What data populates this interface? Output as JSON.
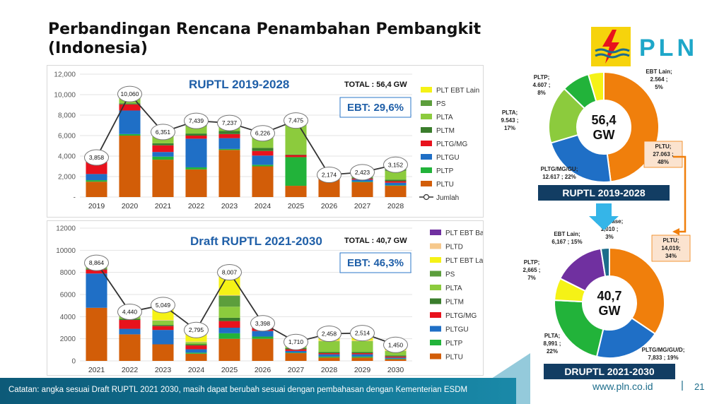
{
  "page": {
    "title": "Perbandingan Rencana Penambahan Pembangkit (Indonesia)",
    "logo_text": "PLN",
    "note": "Catatan: angka sesuai Draft RUPTL 2021 2030, masih dapat berubah sesuai dengan pembahasan dengan Kementerian ESDM",
    "url": "www.pln.co.id",
    "separator": "|",
    "page_number": "21"
  },
  "colors": {
    "PLT EBT Lain": "#f5f216",
    "PLT EBT Base": "#7030a0",
    "PLTD": "#f6c88c",
    "PS": "#5c9e3c",
    "PLTA": "#8ccb3d",
    "PLTM": "#3a7d2c",
    "PLTG/MG": "#e8121d",
    "PLTGU": "#1f6fc6",
    "PLTP": "#22b33a",
    "PLTU": "#d25d08",
    "line": "#333333",
    "brand": "#0d5a78",
    "accent": "#1f5fa8"
  },
  "chart_data": [
    {
      "type": "bar",
      "title": "RUPTL 2019-2028",
      "total_label": "TOTAL : 56,4 GW",
      "ebt_label": "EBT: 29,6%",
      "categories": [
        "2019",
        "2020",
        "2021",
        "2022",
        "2023",
        "2024",
        "2025",
        "2026",
        "2027",
        "2028"
      ],
      "ylim": [
        0,
        12000
      ],
      "yticks": [
        0,
        2000,
        4000,
        6000,
        8000,
        10000,
        12000
      ],
      "ytick_labels": [
        "-",
        "2,000",
        "4,000",
        "6,000",
        "8,000",
        "10,000",
        "12,000"
      ],
      "series": [
        {
          "name": "PLTU",
          "values": [
            1500,
            6000,
            3650,
            2700,
            4600,
            3000,
            1100,
            1800,
            1450,
            1100
          ]
        },
        {
          "name": "PLTP",
          "values": [
            150,
            150,
            300,
            200,
            100,
            150,
            2800,
            60,
            50,
            50
          ]
        },
        {
          "name": "PLTGU",
          "values": [
            600,
            2300,
            450,
            2800,
            1050,
            900,
            0,
            0,
            200,
            250
          ]
        },
        {
          "name": "PLTG/MG",
          "values": [
            1400,
            600,
            650,
            300,
            400,
            450,
            200,
            50,
            100,
            150
          ]
        },
        {
          "name": "PLTM",
          "values": [
            50,
            100,
            200,
            200,
            300,
            300,
            50,
            50,
            100,
            150
          ]
        },
        {
          "name": "PLTA",
          "values": [
            50,
            450,
            700,
            700,
            400,
            1000,
            3000,
            150,
            400,
            850
          ]
        },
        {
          "name": "PS",
          "values": [
            58,
            360,
            301,
            300,
            287,
            326,
            225,
            54,
            73,
            452
          ]
        },
        {
          "name": "PLT EBT Lain",
          "values": [
            50,
            100,
            100,
            239,
            100,
            100,
            100,
            10,
            50,
            150
          ]
        }
      ],
      "totals": [
        3858,
        10060,
        6351,
        7439,
        7237,
        6226,
        7475,
        2174,
        2423,
        3152
      ],
      "total_labels": [
        "3,858",
        "10,060",
        "6,351",
        "7,439",
        "7,237",
        "6,226",
        "7,475",
        "2,174",
        "2,423",
        "3,152"
      ],
      "legend": [
        "PLT EBT Lain",
        "PS",
        "PLTA",
        "PLTM",
        "PLTG/MG",
        "PLTGU",
        "PLTP",
        "PLTU",
        "Jumlah"
      ],
      "legend_placement": "right"
    },
    {
      "type": "bar",
      "title": "Draft RUPTL 2021-2030",
      "total_label": "TOTAL : 40,7 GW",
      "ebt_label": "EBT: 46,3%",
      "categories": [
        "2021",
        "2022",
        "2023",
        "2024",
        "2025",
        "2026",
        "2027",
        "2028",
        "2029",
        "2030"
      ],
      "ylim": [
        0,
        12000
      ],
      "yticks": [
        0,
        2000,
        4000,
        6000,
        8000,
        10000,
        12000
      ],
      "ytick_labels": [
        "0",
        "2000",
        "4000",
        "6000",
        "8000",
        "10000",
        "12000"
      ],
      "series": [
        {
          "name": "PLTU",
          "values": [
            4800,
            2400,
            1500,
            650,
            2000,
            2000,
            700,
            300,
            300,
            150
          ]
        },
        {
          "name": "PLTP",
          "values": [
            0,
            0,
            0,
            100,
            500,
            200,
            50,
            100,
            100,
            50
          ]
        },
        {
          "name": "PLTGU",
          "values": [
            3100,
            500,
            1300,
            300,
            500,
            500,
            150,
            200,
            200,
            100
          ]
        },
        {
          "name": "PLTG/MG",
          "values": [
            350,
            800,
            350,
            350,
            600,
            300,
            150,
            100,
            100,
            100
          ]
        },
        {
          "name": "PLTM",
          "values": [
            100,
            100,
            100,
            100,
            300,
            100,
            100,
            100,
            100,
            100
          ]
        },
        {
          "name": "PLTA",
          "values": [
            200,
            200,
            400,
            200,
            1000,
            200,
            200,
            1000,
            1000,
            400
          ]
        },
        {
          "name": "PS",
          "values": [
            0,
            0,
            0,
            0,
            1000,
            0,
            0,
            0,
            0,
            0
          ]
        },
        {
          "name": "PLTD",
          "values": [
            50,
            50,
            50,
            50,
            50,
            50,
            50,
            50,
            50,
            50
          ]
        },
        {
          "name": "PLT EBT Lain",
          "values": [
            164,
            290,
            1249,
            945,
            1957,
            48,
            210,
            508,
            564,
            400
          ]
        },
        {
          "name": "PLT EBT Base",
          "values": [
            100,
            100,
            100,
            100,
            100,
            0,
            100,
            100,
            100,
            100
          ]
        }
      ],
      "totals": [
        8864,
        4440,
        5049,
        2795,
        8007,
        3398,
        1710,
        2458,
        2514,
        1450
      ],
      "total_labels": [
        "8,864",
        "4,440",
        "5,049",
        "2,795",
        "8,007",
        "3,398",
        "1,710",
        "2,458",
        "2,514",
        "1,450"
      ],
      "legend": [
        "PLT EBT Base",
        "PLTD",
        "PLT EBT Lain",
        "PS",
        "PLTA",
        "PLTM",
        "PLTG/MG",
        "PLTGU",
        "PLTP",
        "PLTU"
      ],
      "legend_placement": "right"
    },
    {
      "type": "pie",
      "title": "RUPTL 2019-2028",
      "center_top": "56,4",
      "center_bottom": "GW",
      "slices": [
        {
          "name": "PLTU",
          "value": 27.063,
          "label_lines": [
            "PLTU;",
            "27.063 ;",
            "48%"
          ],
          "color": "#f07f0c"
        },
        {
          "name": "PLTG/MG/GU",
          "value": 12.617,
          "label_lines": [
            "PLTG/MG/GU;",
            "12.617 ; 22%"
          ],
          "color": "#1f6fc6"
        },
        {
          "name": "PLTA",
          "value": 9.543,
          "label_lines": [
            "PLTA;",
            "9.543 ;",
            "17%"
          ],
          "color": "#8ccb3d"
        },
        {
          "name": "PLTP",
          "value": 4.607,
          "label_lines": [
            "PLTP;",
            "4.607 ;",
            "8%"
          ],
          "color": "#22b33a"
        },
        {
          "name": "EBT Lain",
          "value": 2.564,
          "label_lines": [
            "EBT Lain;",
            "2.564 ;",
            "5%"
          ],
          "color": "#f5f216"
        }
      ]
    },
    {
      "type": "pie",
      "title": "DRUPTL 2021-2030",
      "center_top": "40,7",
      "center_bottom": "GW",
      "slices": [
        {
          "name": "PLTU",
          "value": 14.019,
          "label_lines": [
            "PLTU;",
            "14,019;",
            "34%"
          ],
          "color": "#f07f0c"
        },
        {
          "name": "PLTG/MG/GU/D",
          "value": 7.833,
          "label_lines": [
            "PLTG/MG/GU/D;",
            "7,833 ; 19%"
          ],
          "color": "#1f6fc6"
        },
        {
          "name": "PLTA",
          "value": 8.991,
          "label_lines": [
            "PLTA;",
            "8,991 ;",
            "22%"
          ],
          "color": "#22b33a"
        },
        {
          "name": "PLTP",
          "value": 2.665,
          "label_lines": [
            "PLTP;",
            "2,665 ;",
            "7%"
          ],
          "color": "#f5f216"
        },
        {
          "name": "EBT Lain",
          "value": 6.167,
          "label_lines": [
            "EBT Lain;",
            "6,167 ; 15%"
          ],
          "color": "#7030a0"
        },
        {
          "name": "PLT Base",
          "value": 1.01,
          "label_lines": [
            "PLT Base;",
            "1,010 ;",
            "3%"
          ],
          "color": "#1d6d8b"
        }
      ]
    }
  ]
}
